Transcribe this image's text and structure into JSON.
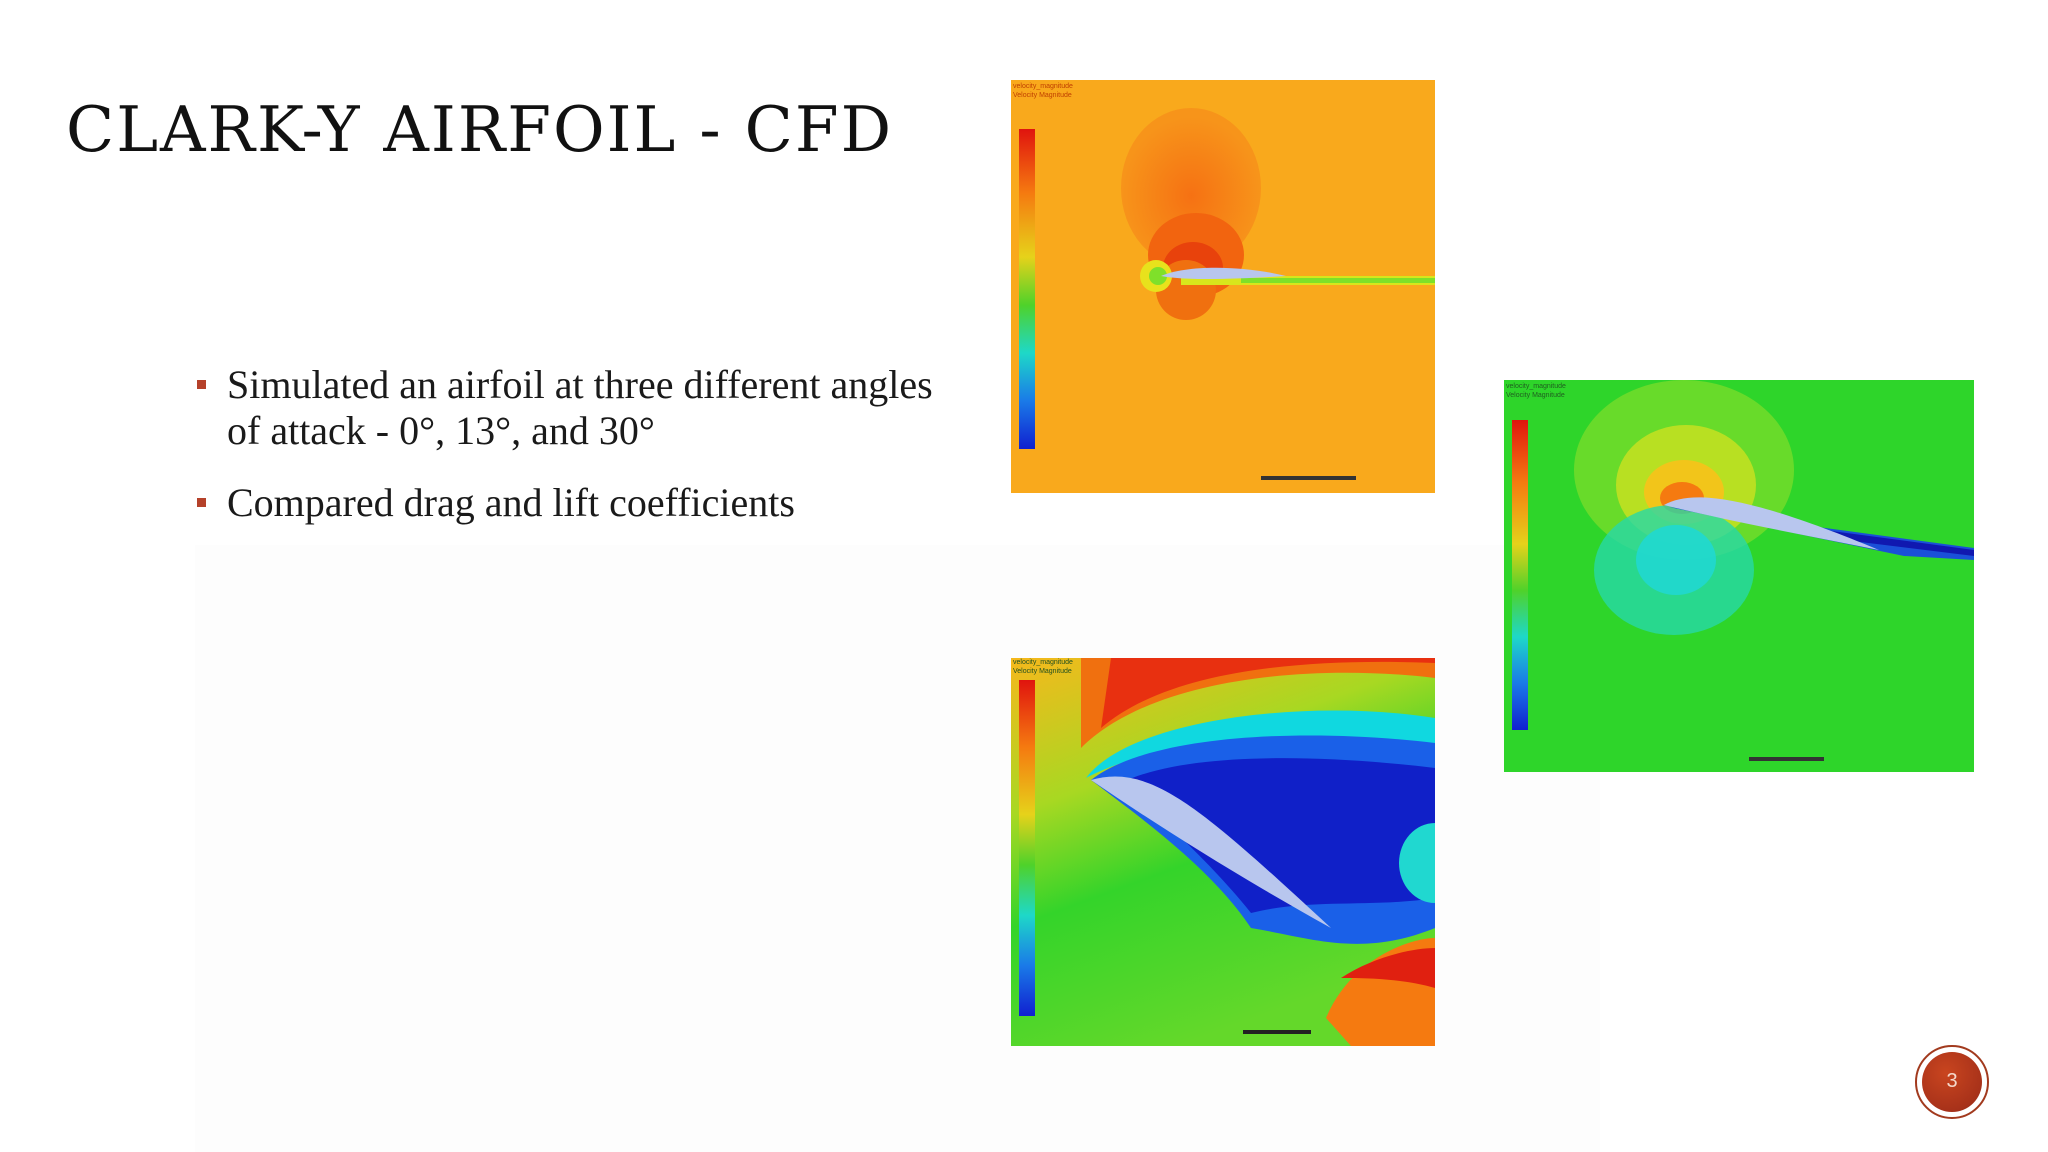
{
  "slide": {
    "title": "CLARK-Y AIRFOIL - CFD",
    "bullets": [
      "Simulated an airfoil at three different angles of attack - 0°, 13°, and 30°",
      "Compared drag and lift coefficients"
    ],
    "slide_number": "3"
  },
  "images": [
    {
      "name": "cfd-velocity-contour-0-deg",
      "angle_deg": 0
    },
    {
      "name": "cfd-velocity-contour-13-deg",
      "angle_deg": 13
    },
    {
      "name": "cfd-velocity-contour-30-deg",
      "angle_deg": 30
    }
  ],
  "colors": {
    "bullet_marker": "#b5412a",
    "badge": "#a8321a",
    "title_text": "#111111",
    "body_text": "#1a1a1a"
  }
}
